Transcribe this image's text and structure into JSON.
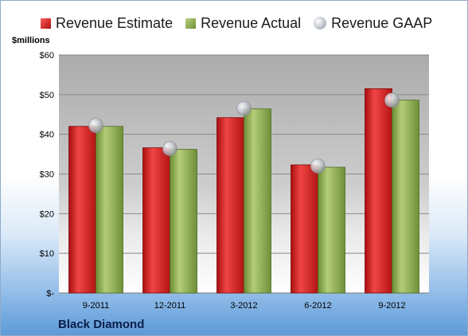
{
  "chart_data": {
    "type": "bar",
    "ylabel": "$millions",
    "categories": [
      "9-2011",
      "12-2011",
      "3-2012",
      "6-2012",
      "9-2012"
    ],
    "series": [
      {
        "name": "Revenue Estimate",
        "values": [
          42.0,
          36.6,
          44.2,
          32.3,
          51.5
        ],
        "color": "#cc2222"
      },
      {
        "name": "Revenue Actual",
        "values": [
          42.0,
          36.2,
          46.4,
          31.7,
          48.6
        ],
        "color": "#8aa94e"
      },
      {
        "name": "Revenue GAAP",
        "values": [
          42.2,
          36.4,
          46.5,
          32.0,
          48.6
        ],
        "color": "#b7bcc4"
      }
    ],
    "ylim": [
      0,
      60
    ],
    "yticks": [
      0,
      10,
      20,
      30,
      40,
      50,
      60
    ],
    "ytick_labels": [
      "$-",
      "$10",
      "$20",
      "$30",
      "$40",
      "$50",
      "$60"
    ],
    "grid": true,
    "legend_position": "top"
  },
  "company": "Black Diamond"
}
